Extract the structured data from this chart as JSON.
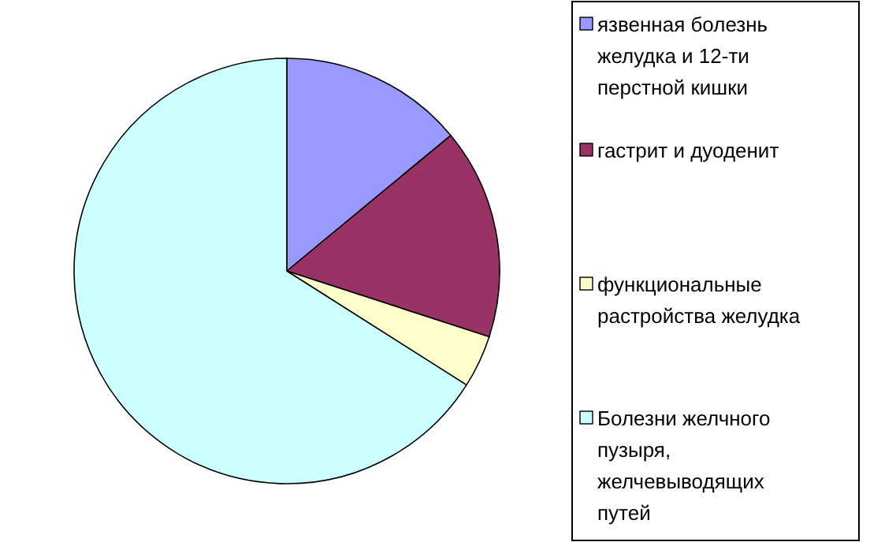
{
  "chart_data": {
    "type": "pie",
    "categories": [
      "язвенная болезнь желудка и 12-ти перстной кишки",
      "гастрит и дуоденит",
      "функциональные растройства желудка",
      "Болезни желчного пузыря, желчевыводящих путей"
    ],
    "values": [
      14,
      16,
      4,
      66
    ],
    "colors": [
      "#9999ff",
      "#993366",
      "#ffffcc",
      "#ccffff"
    ],
    "legend": "right"
  }
}
